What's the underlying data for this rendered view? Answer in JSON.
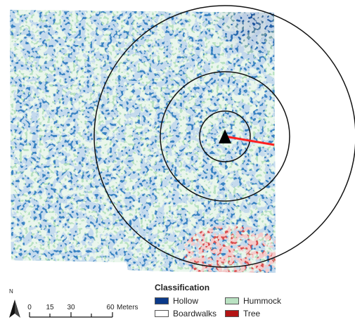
{
  "map": {
    "marker": "triangle-marker-icon",
    "north_label": "N",
    "north_icon": "north-arrow-icon"
  },
  "scale_bar": {
    "ticks": [
      "0",
      "15",
      "30",
      "60"
    ],
    "unit": "Meters"
  },
  "legend": {
    "title": "Classification",
    "items": [
      {
        "label": "Hollow",
        "color": "#0b3a8a"
      },
      {
        "label": "Hummock",
        "color": "#b9e2c2"
      },
      {
        "label": "Boardwalks",
        "color": "#ffffff"
      },
      {
        "label": "Tree",
        "color": "#b31414"
      }
    ]
  },
  "colors": {
    "hummock": "#b9e2c2",
    "hollow": "#0b3a8a",
    "tree": "#b31414",
    "sightline": "#ff2020"
  }
}
